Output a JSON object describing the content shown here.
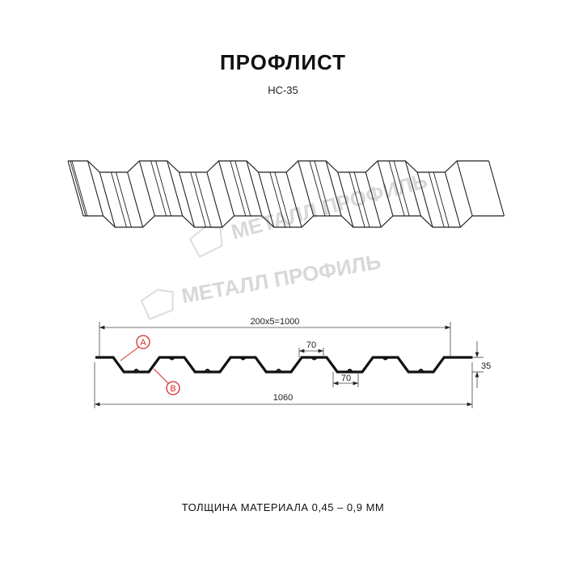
{
  "header": {
    "title": "ПРОФЛИСТ",
    "subtitle": "НС-35"
  },
  "watermark": {
    "text": "МЕТАЛЛ ПРОФИЛЬ"
  },
  "drawing": {
    "dim_pitch": "200x5=1000",
    "dim_total": "1060",
    "dim_height": "35",
    "dim_top_width": "70",
    "dim_bottom_width": "70",
    "callout_a": "A",
    "callout_b": "B",
    "callout_color": "#d42a2a"
  },
  "footer": {
    "thickness": "ТОЛЩИНА МАТЕРИАЛА 0,45 – 0,9 ММ"
  }
}
